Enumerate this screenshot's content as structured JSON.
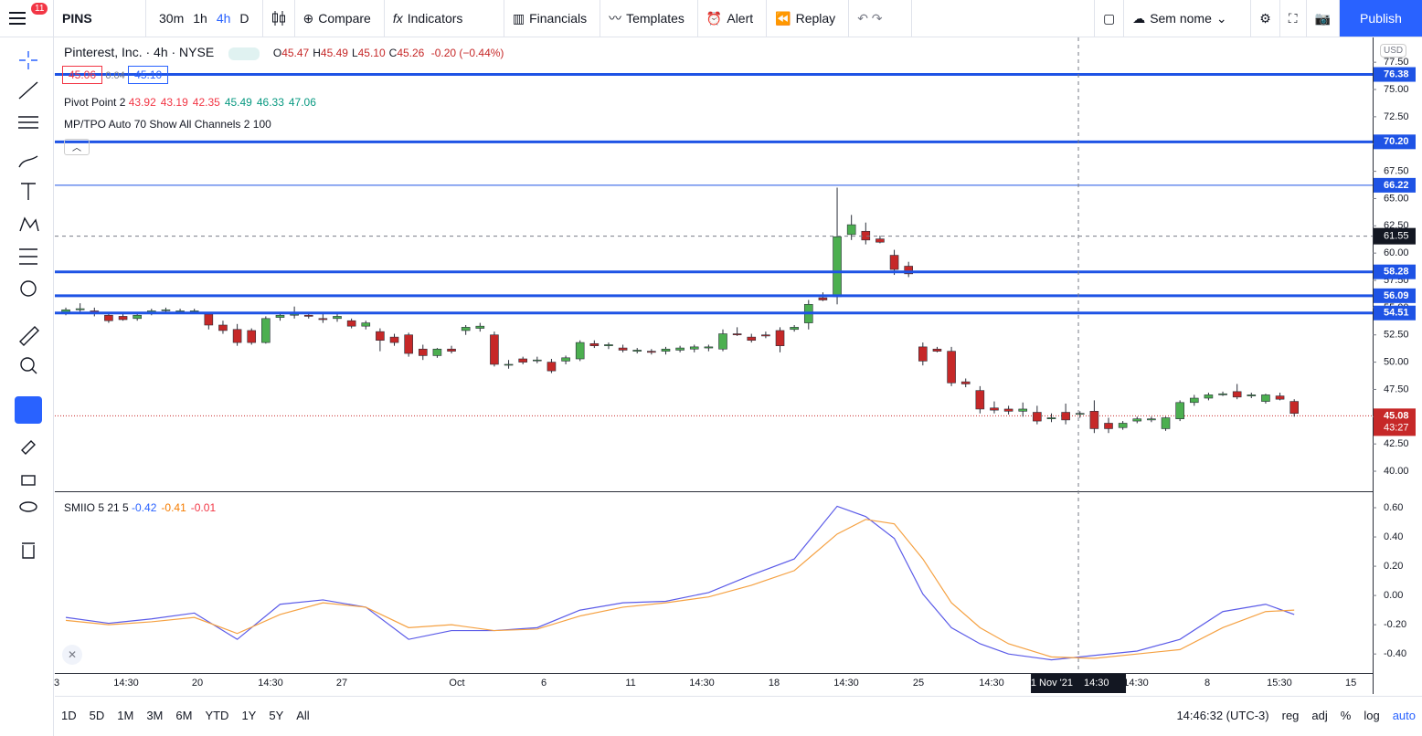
{
  "toolbar": {
    "notifications": "11",
    "symbol": "PINS",
    "intervals": [
      "30m",
      "1h",
      "4h",
      "D"
    ],
    "compare": "Compare",
    "indicators": "Indicators",
    "financials": "Financials",
    "templates": "Templates",
    "alert": "Alert",
    "replay": "Replay",
    "layout_name": "Sem nome",
    "publish": "Publish"
  },
  "legend": {
    "title": "Pinterest, Inc. · 4h · NYSE",
    "ohlc": [
      {
        "label": "O",
        "value": "45.47"
      },
      {
        "label": "H",
        "value": "45.49"
      },
      {
        "label": "L",
        "value": "45.10"
      },
      {
        "label": "C",
        "value": "45.26"
      }
    ],
    "change": "-0.20 (−0.44%)",
    "bid": "45.06",
    "spread": "0.04",
    "ask": "45.10",
    "pivot_name": "Pivot Point 2",
    "pivot_values": [
      "43.92",
      "43.19",
      "42.35",
      "45.49",
      "46.33",
      "47.06"
    ],
    "tpo": "MP/TPO Auto 70 Show All Channels 2 100",
    "currency": "USD",
    "oscillator_name": "SMIIO 5 21 5",
    "oscillator_values": [
      "-0.42",
      "-0.41",
      "-0.01"
    ]
  },
  "chart_data": [
    {
      "type": "candlestick",
      "up_color": "#4caf50",
      "down_color": "#c62828",
      "ohlc": [
        [
          54.6,
          55.0,
          54.3,
          54.8
        ],
        [
          54.8,
          55.4,
          54.5,
          54.9
        ],
        [
          54.7,
          55.0,
          54.2,
          54.5
        ],
        [
          54.3,
          54.6,
          53.6,
          53.8
        ],
        [
          54.2,
          54.5,
          53.8,
          53.9
        ],
        [
          54.0,
          54.4,
          53.8,
          54.3
        ],
        [
          54.5,
          54.9,
          54.3,
          54.7
        ],
        [
          54.8,
          55.0,
          54.6,
          54.8
        ],
        [
          54.7,
          54.9,
          54.5,
          54.7
        ],
        [
          54.7,
          54.9,
          54.5,
          54.7
        ],
        [
          54.4,
          54.6,
          53.0,
          53.4
        ],
        [
          53.4,
          53.8,
          52.6,
          52.9
        ],
        [
          53.0,
          53.5,
          51.5,
          51.8
        ],
        [
          52.9,
          53.1,
          51.6,
          51.8
        ],
        [
          51.8,
          54.2,
          51.7,
          54.0
        ],
        [
          54.1,
          54.6,
          53.8,
          54.3
        ],
        [
          54.3,
          55.1,
          54.0,
          54.4
        ],
        [
          54.3,
          54.6,
          54.0,
          54.2
        ],
        [
          54.0,
          54.5,
          53.6,
          53.9
        ],
        [
          54.0,
          54.4,
          53.7,
          54.2
        ],
        [
          53.8,
          54.0,
          53.1,
          53.3
        ],
        [
          53.3,
          53.8,
          53.0,
          53.6
        ],
        [
          52.8,
          53.1,
          51.0,
          52.0
        ],
        [
          52.3,
          52.6,
          51.5,
          51.8
        ],
        [
          52.5,
          52.7,
          50.5,
          50.8
        ],
        [
          51.2,
          51.6,
          50.2,
          50.6
        ],
        [
          50.6,
          51.3,
          50.4,
          51.2
        ],
        [
          51.2,
          51.5,
          50.8,
          51.0
        ],
        [
          52.9,
          53.4,
          52.5,
          53.2
        ],
        [
          53.1,
          53.6,
          52.8,
          53.3
        ],
        [
          52.5,
          52.8,
          49.6,
          49.8
        ],
        [
          49.8,
          50.2,
          49.4,
          49.8
        ],
        [
          50.3,
          50.5,
          49.8,
          50.0
        ],
        [
          50.2,
          50.5,
          49.9,
          50.2
        ],
        [
          50.0,
          50.3,
          49.0,
          49.2
        ],
        [
          50.1,
          50.6,
          49.8,
          50.4
        ],
        [
          50.3,
          52.0,
          50.1,
          51.8
        ],
        [
          51.7,
          52.0,
          51.3,
          51.5
        ],
        [
          51.5,
          51.8,
          51.2,
          51.6
        ],
        [
          51.3,
          51.6,
          50.9,
          51.1
        ],
        [
          51.0,
          51.3,
          50.8,
          51.1
        ],
        [
          51.0,
          51.2,
          50.7,
          50.9
        ],
        [
          51.0,
          51.4,
          50.7,
          51.2
        ],
        [
          51.1,
          51.5,
          50.9,
          51.3
        ],
        [
          51.2,
          51.6,
          50.9,
          51.4
        ],
        [
          51.3,
          51.6,
          51.0,
          51.4
        ],
        [
          51.2,
          53.0,
          51.0,
          52.6
        ],
        [
          52.6,
          53.2,
          52.4,
          52.5
        ],
        [
          52.3,
          52.6,
          51.8,
          52.0
        ],
        [
          52.5,
          52.8,
          52.2,
          52.4
        ],
        [
          52.9,
          53.2,
          50.9,
          51.5
        ],
        [
          53.0,
          53.4,
          52.8,
          53.2
        ],
        [
          53.6,
          55.7,
          53.0,
          55.3
        ],
        [
          55.9,
          56.4,
          55.6,
          55.7
        ],
        [
          56.0,
          66.0,
          55.3,
          61.5
        ],
        [
          61.7,
          63.5,
          61.2,
          62.6
        ],
        [
          62.0,
          62.8,
          60.8,
          61.2
        ],
        [
          61.3,
          61.6,
          60.9,
          61.0
        ],
        [
          59.8,
          60.3,
          58.0,
          58.5
        ],
        [
          58.8,
          59.2,
          57.8,
          58.1
        ],
        [
          51.4,
          51.8,
          49.7,
          50.1
        ],
        [
          51.2,
          51.4,
          50.9,
          51.0
        ],
        [
          51.0,
          51.4,
          47.8,
          48.1
        ],
        [
          48.2,
          48.5,
          47.7,
          48.0
        ],
        [
          47.4,
          47.8,
          45.3,
          45.7
        ],
        [
          45.8,
          46.4,
          45.3,
          45.6
        ],
        [
          45.7,
          46.0,
          45.2,
          45.5
        ],
        [
          45.5,
          46.3,
          45.0,
          45.7
        ],
        [
          45.4,
          46.0,
          44.3,
          44.6
        ],
        [
          44.8,
          45.3,
          44.5,
          44.9
        ],
        [
          45.4,
          46.2,
          44.3,
          44.7
        ],
        [
          45.3,
          45.5,
          44.9,
          45.3
        ],
        [
          45.5,
          46.5,
          43.5,
          43.9
        ],
        [
          44.4,
          44.9,
          43.5,
          43.9
        ],
        [
          44.0,
          44.6,
          43.8,
          44.4
        ],
        [
          44.6,
          45.0,
          44.4,
          44.8
        ],
        [
          44.7,
          45.0,
          44.5,
          44.8
        ],
        [
          43.9,
          45.0,
          43.7,
          44.9
        ],
        [
          44.8,
          46.5,
          44.6,
          46.3
        ],
        [
          46.3,
          47.0,
          46.0,
          46.7
        ],
        [
          46.7,
          47.2,
          46.5,
          47.0
        ],
        [
          47.0,
          47.3,
          46.9,
          47.1
        ],
        [
          47.3,
          48.0,
          46.6,
          46.8
        ],
        [
          46.9,
          47.2,
          46.7,
          47.0
        ],
        [
          46.4,
          47.1,
          46.2,
          47.0
        ],
        [
          46.9,
          47.2,
          46.5,
          46.6
        ],
        [
          46.4,
          46.6,
          45.0,
          45.3
        ]
      ],
      "xlim": [
        -0.77,
        91.49
      ],
      "ylim": [
        38.16,
        79.69
      ],
      "yticks": [
        {
          "value": 40,
          "label": "40.00"
        },
        {
          "value": 42.5,
          "label": "42.50"
        },
        {
          "value": 45,
          "label": "45.00"
        },
        {
          "value": 47.5,
          "label": "47.50"
        },
        {
          "value": 50,
          "label": "50.00"
        },
        {
          "value": 52.5,
          "label": "52.50"
        },
        {
          "value": 55,
          "label": "55.00"
        },
        {
          "value": 57.5,
          "label": "57.50"
        },
        {
          "value": 60,
          "label": "60.00"
        },
        {
          "value": 62.5,
          "label": "62.50"
        },
        {
          "value": 65,
          "label": "65.00"
        },
        {
          "value": 67.5,
          "label": "67.50"
        },
        {
          "value": 70,
          "label": "70.00"
        },
        {
          "value": 72.5,
          "label": "72.50"
        },
        {
          "value": 75,
          "label": "75.00"
        },
        {
          "value": 77.5,
          "label": "77.50"
        }
      ],
      "xticks": [
        {
          "value": -0.64,
          "label": "3"
        },
        {
          "value": 4.22,
          "label": "14:30"
        },
        {
          "value": 9.21,
          "label": "20"
        },
        {
          "value": 14.33,
          "label": "14:30"
        },
        {
          "value": 19.32,
          "label": "27"
        },
        {
          "value": 27.38,
          "label": "Oct"
        },
        {
          "value": 33.46,
          "label": "6"
        },
        {
          "value": 39.54,
          "label": "11"
        },
        {
          "value": 44.53,
          "label": "14:30"
        },
        {
          "value": 49.58,
          "label": "18"
        },
        {
          "value": 54.64,
          "label": "14:30"
        },
        {
          "value": 59.69,
          "label": "25"
        },
        {
          "value": 64.81,
          "label": "14:30"
        },
        {
          "value": 74.92,
          "label": "14:30"
        },
        {
          "value": 79.91,
          "label": "8"
        },
        {
          "value": 84.96,
          "label": "15:30"
        },
        {
          "value": 89.96,
          "label": "15"
        }
      ],
      "levels": [
        {
          "value": 76.38,
          "line_width": 3
        },
        {
          "value": 70.2,
          "label": "70.20",
          "line_width": 3
        },
        {
          "value": 66.22,
          "line_width": 1
        },
        {
          "value": 58.28,
          "line_width": 3
        },
        {
          "value": 56.09,
          "line_width": 3
        },
        {
          "value": 54.51,
          "line_width": 3
        }
      ],
      "level_color": "#1e53e5",
      "last_price": {
        "value": 45.08,
        "countdown": "43:27"
      },
      "crosshair": {
        "price": 61.55,
        "x": 70.89,
        "date_label": "01 Nov '21",
        "time_label": "14:30"
      }
    },
    {
      "type": "line",
      "x": [
        0,
        3,
        6,
        9,
        12,
        15,
        18,
        21,
        24,
        27,
        30,
        33,
        36,
        39,
        42,
        45,
        48,
        51,
        54,
        56,
        58,
        60,
        62,
        64,
        66,
        69,
        72,
        75,
        78,
        81,
        84,
        86
      ],
      "xlim": [
        -0.77,
        91.49
      ],
      "ylim": [
        -0.53,
        0.7
      ],
      "yticks": [
        {
          "value": 0.6,
          "label": "0.60"
        },
        {
          "value": 0.4,
          "label": "0.40"
        },
        {
          "value": 0.2,
          "label": "0.20"
        },
        {
          "value": 0,
          "label": "0.00"
        },
        {
          "value": -0.2,
          "label": "-0.20"
        },
        {
          "value": -0.4,
          "label": "-0.40"
        }
      ],
      "series": [
        {
          "color": "#5b5be8",
          "values": [
            -0.15,
            -0.19,
            -0.16,
            -0.12,
            -0.3,
            -0.06,
            -0.03,
            -0.08,
            -0.3,
            -0.24,
            -0.24,
            -0.22,
            -0.1,
            -0.05,
            -0.04,
            0.02,
            0.14,
            0.25,
            0.61,
            0.54,
            0.39,
            0.01,
            -0.22,
            -0.33,
            -0.4,
            -0.44,
            -0.41,
            -0.38,
            -0.3,
            -0.11,
            -0.06,
            -0.13
          ]
        },
        {
          "color": "#f5a142",
          "values": [
            -0.17,
            -0.2,
            -0.18,
            -0.15,
            -0.26,
            -0.13,
            -0.05,
            -0.08,
            -0.22,
            -0.2,
            -0.24,
            -0.23,
            -0.14,
            -0.08,
            -0.05,
            -0.01,
            0.07,
            0.17,
            0.42,
            0.52,
            0.49,
            0.25,
            -0.05,
            -0.22,
            -0.33,
            -0.42,
            -0.43,
            -0.4,
            -0.37,
            -0.22,
            -0.11,
            -0.1
          ]
        }
      ]
    }
  ],
  "bottom_bar": {
    "ranges": [
      "1D",
      "5D",
      "1M",
      "3M",
      "6M",
      "YTD",
      "1Y",
      "5Y",
      "All"
    ],
    "clock": "14:46:32 (UTC-3)",
    "options": [
      "reg",
      "adj",
      "%",
      "log",
      "auto"
    ]
  }
}
